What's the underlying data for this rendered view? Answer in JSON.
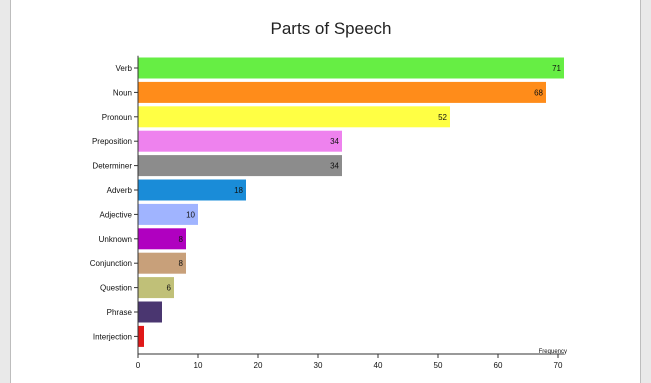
{
  "chart_data": {
    "type": "bar",
    "orientation": "horizontal",
    "title": "Parts of Speech",
    "xlabel": "Frequency",
    "ylabel": "",
    "xlim": [
      0,
      71
    ],
    "x_ticks": [
      0,
      10,
      20,
      30,
      40,
      50,
      60,
      70
    ],
    "grid": false,
    "legend": "none",
    "categories": [
      "Verb",
      "Noun",
      "Pronoun",
      "Preposition",
      "Determiner",
      "Adverb",
      "Adjective",
      "Unknown",
      "Conjunction",
      "Question",
      "Phrase",
      "Interjection"
    ],
    "values": [
      71,
      68,
      52,
      34,
      34,
      18,
      10,
      8,
      8,
      6,
      4,
      1
    ],
    "data_labels": [
      "71",
      "68",
      "52",
      "34",
      "34",
      "18",
      "10",
      "8",
      "8",
      "6",
      "",
      ""
    ],
    "colors": [
      "#66ee44",
      "#ff8c1a",
      "#ffff44",
      "#ee82ee",
      "#8c8c8c",
      "#1a8cd8",
      "#a0b4ff",
      "#b000c0",
      "#c8a07a",
      "#c0c078",
      "#4a3670",
      "#e01818"
    ]
  }
}
